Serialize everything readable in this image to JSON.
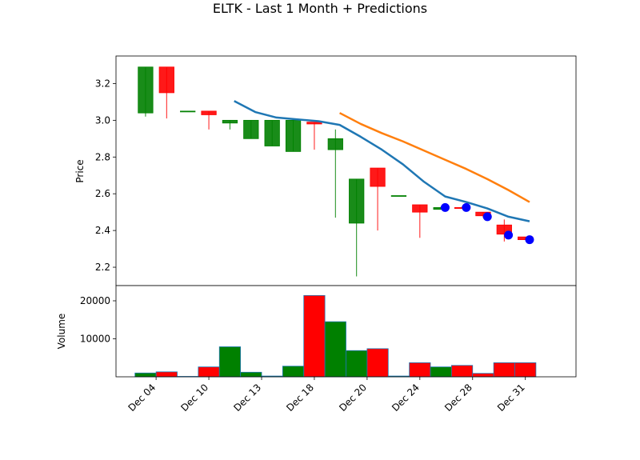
{
  "chart_data": {
    "type": "candlestick",
    "title": "ELTK - Last 1 Month + Predictions",
    "price_panel": {
      "ylabel": "Price",
      "ylim": [
        2.1,
        3.35
      ],
      "yticks": [
        2.2,
        2.4,
        2.6,
        2.8,
        3.0,
        3.2
      ]
    },
    "volume_panel": {
      "ylabel": "Volume",
      "ylim": [
        0,
        24000
      ],
      "yticks": [
        10000,
        20000
      ],
      "ytick_labels": [
        "10000",
        "20000"
      ]
    },
    "xlim": [
      -1.4,
      20.4
    ],
    "xticks": [
      {
        "index": 0.5,
        "label": "Dec 04"
      },
      {
        "index": 3.0,
        "label": "Dec 10"
      },
      {
        "index": 5.5,
        "label": "Dec 13"
      },
      {
        "index": 8.0,
        "label": "Dec 18"
      },
      {
        "index": 10.5,
        "label": "Dec 20"
      },
      {
        "index": 13.0,
        "label": "Dec 24"
      },
      {
        "index": 15.5,
        "label": "Dec 28"
      },
      {
        "index": 18.0,
        "label": "Dec 31"
      }
    ],
    "candles": [
      {
        "open": 3.04,
        "high": 3.29,
        "low": 3.02,
        "close": 3.29,
        "volume": 1000
      },
      {
        "open": 3.29,
        "high": 3.29,
        "low": 3.01,
        "close": 3.15,
        "volume": 1300
      },
      {
        "open": 3.05,
        "high": 3.05,
        "low": 3.05,
        "close": 3.05,
        "volume": 100
      },
      {
        "open": 3.05,
        "high": 3.05,
        "low": 2.95,
        "close": 3.03,
        "volume": 2600
      },
      {
        "open": 2.985,
        "high": 3.0,
        "low": 2.95,
        "close": 3.0,
        "volume": 7900
      },
      {
        "open": 2.9,
        "high": 3.0,
        "low": 2.9,
        "close": 3.0,
        "volume": 1200
      },
      {
        "open": 2.86,
        "high": 3.0,
        "low": 2.86,
        "close": 3.0,
        "volume": 200
      },
      {
        "open": 2.83,
        "high": 3.0,
        "low": 2.83,
        "close": 3.0,
        "volume": 2800
      },
      {
        "open": 2.99,
        "high": 2.99,
        "low": 2.84,
        "close": 2.98,
        "volume": 21400
      },
      {
        "open": 2.84,
        "high": 2.95,
        "low": 2.47,
        "close": 2.9,
        "volume": 14500
      },
      {
        "open": 2.44,
        "high": 2.68,
        "low": 2.15,
        "close": 2.68,
        "volume": 6900
      },
      {
        "open": 2.74,
        "high": 2.74,
        "low": 2.4,
        "close": 2.64,
        "volume": 7400
      },
      {
        "open": 2.59,
        "high": 2.59,
        "low": 2.59,
        "close": 2.59,
        "volume": 200
      },
      {
        "open": 2.54,
        "high": 2.54,
        "low": 2.36,
        "close": 2.5,
        "volume": 3700
      },
      {
        "open": 2.515,
        "high": 2.53,
        "low": 2.515,
        "close": 2.525,
        "volume": 2600
      },
      {
        "open": 2.525,
        "high": 2.53,
        "low": 2.52,
        "close": 2.52,
        "volume": 3000
      },
      {
        "open": 2.5,
        "high": 2.5,
        "low": 2.47,
        "close": 2.48,
        "volume": 900
      },
      {
        "open": 2.43,
        "high": 2.46,
        "low": 2.34,
        "close": 2.38,
        "volume": 3700
      },
      {
        "open": 2.365,
        "high": 2.365,
        "low": 2.35,
        "close": 2.35,
        "volume": 3700
      }
    ],
    "series": [
      {
        "color": "#1f77b4",
        "points": [
          [
            4.2,
            3.105
          ],
          [
            5.2,
            3.045
          ],
          [
            6.2,
            3.015
          ],
          [
            7.2,
            3.005
          ],
          [
            8.2,
            2.995
          ],
          [
            9.2,
            2.975
          ],
          [
            10.2,
            2.91
          ],
          [
            11.2,
            2.84
          ],
          [
            12.2,
            2.76
          ],
          [
            13.2,
            2.665
          ],
          [
            14.2,
            2.585
          ],
          [
            15.2,
            2.555
          ],
          [
            16.2,
            2.52
          ],
          [
            17.2,
            2.475
          ],
          [
            18.2,
            2.45
          ]
        ]
      },
      {
        "color": "#ff7f0e",
        "points": [
          [
            9.2,
            3.04
          ],
          [
            10.2,
            2.98
          ],
          [
            11.2,
            2.93
          ],
          [
            12.2,
            2.885
          ],
          [
            13.2,
            2.835
          ],
          [
            14.2,
            2.785
          ],
          [
            15.2,
            2.735
          ],
          [
            16.2,
            2.68
          ],
          [
            17.2,
            2.62
          ],
          [
            18.2,
            2.555
          ]
        ]
      }
    ],
    "prediction_markers": [
      {
        "index": 14.2,
        "value": 2.525
      },
      {
        "index": 15.2,
        "value": 2.525
      },
      {
        "index": 16.2,
        "value": 2.475
      },
      {
        "index": 17.2,
        "value": 2.375
      },
      {
        "index": 18.2,
        "value": 2.35
      }
    ],
    "colors": {
      "up": "#008000",
      "down": "#ff0000",
      "marker": "#0000ff",
      "volume_edge": "#1f77b4"
    }
  }
}
